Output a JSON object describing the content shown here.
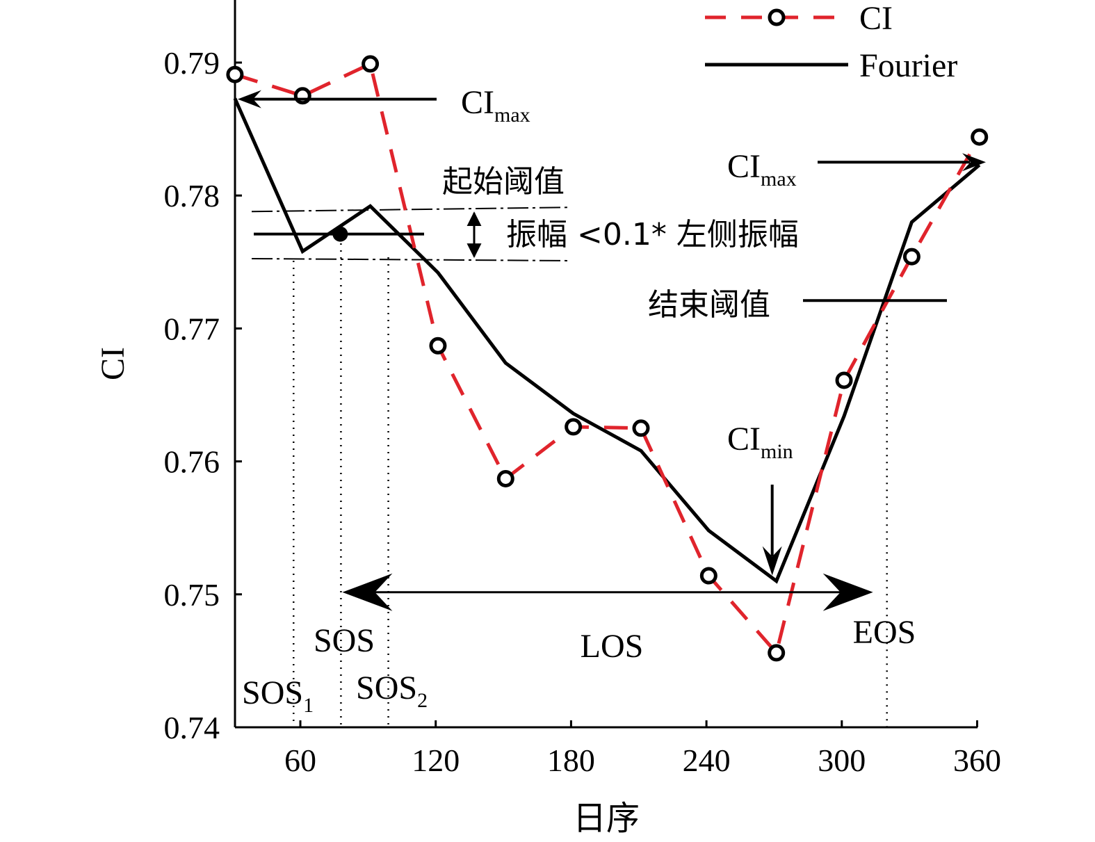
{
  "chart_data": {
    "type": "line",
    "xlabel": "日序",
    "ylabel": "CI",
    "xlim": [
      30,
      360
    ],
    "ylim": [
      0.74,
      0.795
    ],
    "xticks": [
      60,
      120,
      180,
      240,
      300,
      360
    ],
    "xtick_labels": [
      "60",
      "120",
      "180",
      "240",
      "300",
      "360"
    ],
    "yticks": [
      0.74,
      0.75,
      0.76,
      0.77,
      0.78,
      0.79
    ],
    "ytick_labels": [
      "0.74",
      "0.75",
      "0.76",
      "0.77",
      "0.78",
      "0.79"
    ],
    "legend": {
      "placement": "top-right",
      "entries": [
        "CI",
        "Fourier"
      ]
    },
    "grid": false,
    "series": [
      {
        "name": "CI",
        "style": "dashed-circle",
        "color": "#e0242c",
        "x": [
          31,
          61,
          91,
          121,
          151,
          181,
          211,
          241,
          271,
          301,
          331,
          361
        ],
        "y": [
          0.7891,
          0.7875,
          0.7899,
          0.7687,
          0.7587,
          0.7626,
          0.7625,
          0.7514,
          0.7456,
          0.7661,
          0.7754,
          0.7844
        ]
      },
      {
        "name": "Fourier",
        "style": "solid",
        "color": "#000000",
        "x": [
          31,
          61,
          91,
          121,
          151,
          181,
          211,
          241,
          271,
          301,
          331,
          361
        ],
        "y": [
          0.7873,
          0.7758,
          0.7792,
          0.7742,
          0.7674,
          0.7636,
          0.7608,
          0.7548,
          0.751,
          0.7634,
          0.778,
          0.7823
        ]
      }
    ],
    "annotations": {
      "ci_max_left": {
        "main": "CI",
        "sub": "max"
      },
      "ci_max_right": {
        "main": "CI",
        "sub": "max"
      },
      "ci_min": {
        "main": "CI",
        "sub": "min"
      },
      "start_threshold": "起始阈值",
      "amplitude_note": "振幅 <0.1* 左侧振幅",
      "end_threshold": "结束阈值",
      "sos": "SOS",
      "sos1": {
        "main": "SOS",
        "sub": "1"
      },
      "sos2": {
        "main": "SOS",
        "sub": "2"
      },
      "los": "LOS",
      "eos": "EOS"
    },
    "markers": {
      "start_threshold_y": 0.7771,
      "band_upper_y": 0.7789,
      "band_lower_y": 0.7752,
      "sos_x": 78,
      "sos1_x": 57,
      "sos2_x": 99,
      "eos_x": 320,
      "end_threshold_y": 0.7721,
      "los_start_x": 78,
      "los_end_x": 320,
      "los_y": 0.75,
      "ci_min_x": 271,
      "ci_max_right_y": 0.7823
    }
  }
}
